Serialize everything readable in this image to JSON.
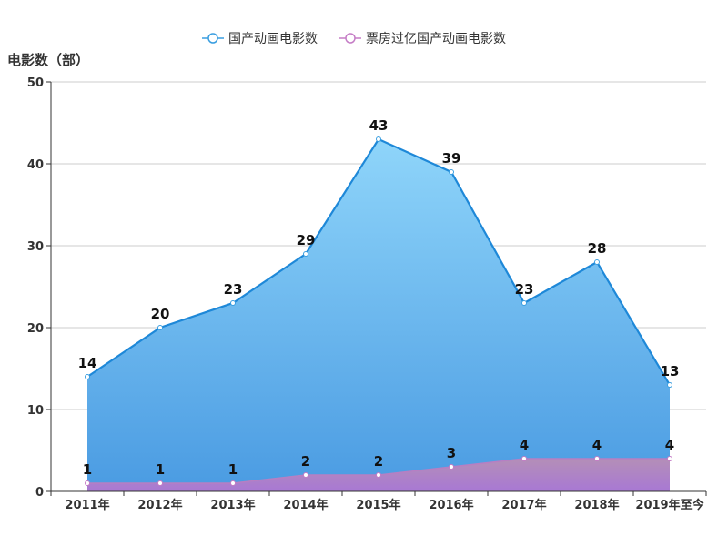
{
  "chart_data": {
    "type": "area",
    "categories": [
      "2011年",
      "2012年",
      "2013年",
      "2014年",
      "2015年",
      "2016年",
      "2017年",
      "2018年",
      "2019年至今"
    ],
    "series": [
      {
        "name": "国产动画电影数",
        "values": [
          14,
          20,
          23,
          29,
          43,
          39,
          23,
          28,
          13
        ],
        "color": "#3a9ee0"
      },
      {
        "name": "票房过亿国产动画电影数",
        "values": [
          1,
          1,
          1,
          2,
          2,
          3,
          4,
          4,
          4
        ],
        "color": "#c57dc6"
      }
    ],
    "ylabel": "电影数（部）",
    "ylim": [
      0,
      50
    ],
    "yticks": [
      "0",
      "10",
      "20",
      "30",
      "40",
      "50"
    ],
    "grid": true,
    "legend_position": "top-center"
  }
}
